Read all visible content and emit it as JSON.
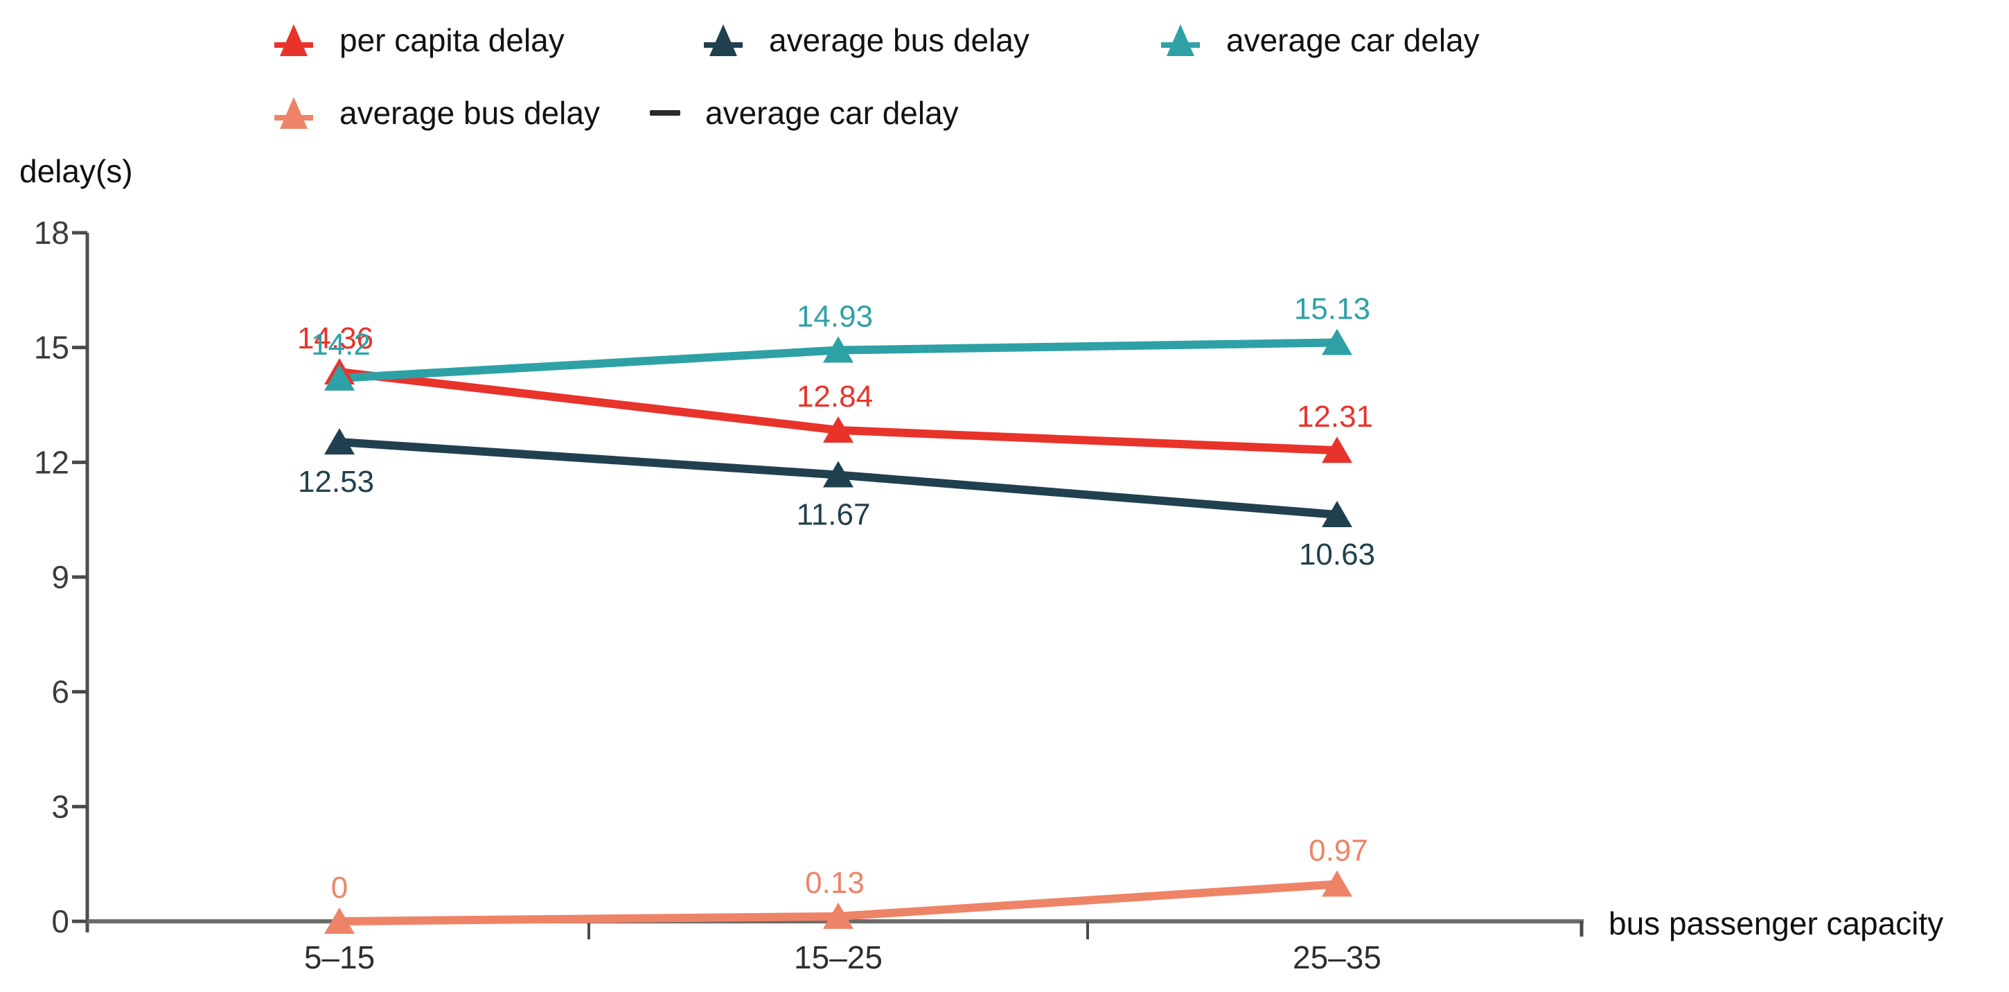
{
  "y_axis": {
    "title": "delay(s)"
  },
  "x_axis": {
    "title": "bus passenger capacity"
  },
  "legend": {
    "rows": [
      {
        "items": [
          {
            "label": "per capita delay",
            "color": "#E8332B"
          },
          {
            "label": "average bus delay",
            "color": "#21404F"
          },
          {
            "label": "average car delay",
            "color": "#2EA1A7"
          }
        ]
      },
      {
        "items": [
          {
            "label": "average bus delay",
            "color": "#EE8467"
          }
        ],
        "separator": "—",
        "separator_label": "average car delay"
      }
    ]
  },
  "chart_data": {
    "type": "line",
    "title": "",
    "xlabel": "bus passenger capacity",
    "ylabel": "delay(s)",
    "ylim": [
      0,
      18
    ],
    "yticks": [
      0,
      3,
      6,
      9,
      12,
      15,
      18
    ],
    "grid": false,
    "legend_position": "top",
    "categories": [
      "5–15",
      "15–25",
      "25–35"
    ],
    "series": [
      {
        "name": "per capita delay",
        "color": "#E8332B",
        "marker": "triangle-up",
        "values": [
          14.36,
          12.84,
          12.31
        ],
        "labels": [
          "14.36",
          "12.84",
          "12.31"
        ]
      },
      {
        "name": "average bus delay",
        "color": "#21404F",
        "marker": "triangle-up",
        "values": [
          12.53,
          11.67,
          10.63
        ],
        "labels": [
          "12.53",
          "11.67",
          "10.63"
        ]
      },
      {
        "name": "average car delay",
        "color": "#2EA1A7",
        "marker": "triangle-up",
        "values": [
          14.2,
          14.93,
          15.13
        ],
        "labels": [
          "14.2",
          "14.93",
          "15.13"
        ]
      },
      {
        "name": "average bus delay — average car delay",
        "color": "#EE8467",
        "marker": "triangle-up",
        "values": [
          0,
          0.13,
          0.97
        ],
        "labels": [
          "0",
          "0.13",
          "0.97"
        ]
      }
    ]
  },
  "axis_style": {
    "y_axis_color": "#4f4f4f",
    "x_axis_color": "#6b6b6b",
    "tick_color": "#4a4a4a",
    "tick_label_color": "#3b3b3b",
    "category_label_color": "#2e2e2e"
  }
}
